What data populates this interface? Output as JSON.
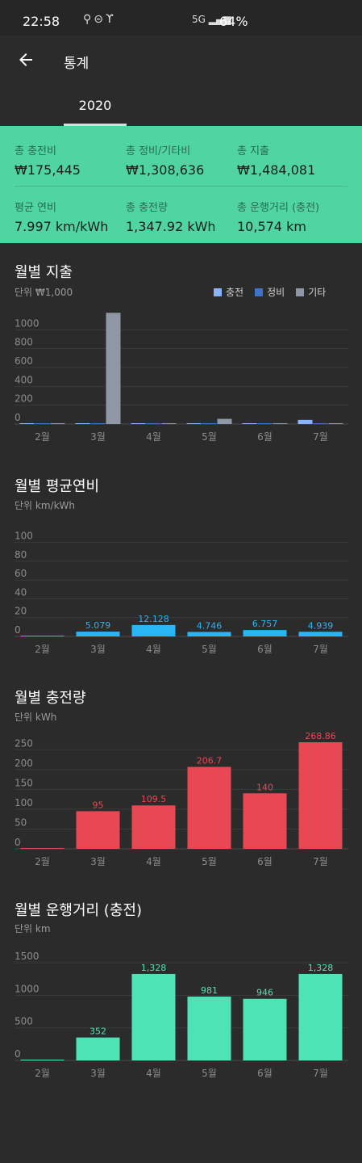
{
  "status_bar": {
    "time": "22:58",
    "network": "5G",
    "battery": "64%",
    "icons": [
      "tesla-icon",
      "minus-circle-icon",
      "tesla-icon"
    ]
  },
  "app_bar": {
    "title": "통계",
    "back_icon": "arrow-left-icon"
  },
  "tabs": [
    {
      "label": "2020",
      "selected": true
    }
  ],
  "summary": {
    "items": [
      {
        "label": "총 충전비",
        "value": "₩175,445"
      },
      {
        "label": "총 정비/기타비",
        "value": "₩1,308,636"
      },
      {
        "label": "총 지출",
        "value": "₩1,484,081"
      },
      {
        "label": "평균 연비",
        "value": "7.997 km/kWh"
      },
      {
        "label": "총 충전량",
        "value": "1,347.92 kWh"
      },
      {
        "label": "총 운행거리 (충전)",
        "value": "10,574 km"
      }
    ]
  },
  "colors": {
    "summary_bg": "#50d4a2",
    "charge": "#8ab4f8",
    "maintenance": "#3d74c8",
    "other": "#8f98a4",
    "efficiency": "#29b6f6",
    "energy": "#e84853",
    "distance": "#4de3b5"
  },
  "chart_data": [
    {
      "type": "bar",
      "title": "월별 지출",
      "subtitle": "단위 ₩1,000",
      "categories": [
        "2월",
        "3월",
        "4월",
        "5월",
        "6월",
        "7월"
      ],
      "series": [
        {
          "name": "충전",
          "values": [
            2,
            1,
            2,
            7,
            4,
            44
          ]
        },
        {
          "name": "정비",
          "values": [
            0,
            0,
            0,
            0,
            0,
            0
          ]
        },
        {
          "name": "기타",
          "values": [
            0,
            1180,
            0,
            55,
            0,
            0
          ]
        }
      ],
      "yticks": [
        0,
        200,
        400,
        600,
        800,
        1000
      ],
      "ylim": [
        0,
        1200
      ],
      "legend": "top-right"
    },
    {
      "type": "bar",
      "title": "월별 평균연비",
      "subtitle": "단위 km/kWh",
      "categories": [
        "2월",
        "3월",
        "4월",
        "5월",
        "6월",
        "7월"
      ],
      "values": [
        0,
        5.079,
        12.128,
        4.746,
        6.757,
        4.939
      ],
      "labels": [
        "",
        "5.079",
        "12.128",
        "4.746",
        "6.757",
        "4.939"
      ],
      "yticks": [
        0,
        20,
        40,
        60,
        80,
        100
      ],
      "ylim": [
        0,
        110
      ]
    },
    {
      "type": "bar",
      "title": "월별 충전량",
      "subtitle": "단위 kWh",
      "categories": [
        "2월",
        "3월",
        "4월",
        "5월",
        "6월",
        "7월"
      ],
      "values": [
        0.5,
        95,
        109.5,
        206.7,
        140,
        268.86
      ],
      "labels": [
        "",
        "95",
        "109.5",
        "206.7",
        "140",
        "268.86"
      ],
      "yticks": [
        0,
        50,
        100,
        150,
        200,
        250
      ],
      "ylim": [
        0,
        275
      ]
    },
    {
      "type": "bar",
      "title": "월별 운행거리 (충전)",
      "subtitle": "단위 km",
      "categories": [
        "2월",
        "3월",
        "4월",
        "5월",
        "6월",
        "7월"
      ],
      "values": [
        0,
        352,
        1328,
        981,
        946,
        1328
      ],
      "labels": [
        "",
        "352",
        "1,328",
        "981",
        "946",
        "1,328"
      ],
      "yticks": [
        0,
        500,
        1000,
        1500
      ],
      "ylim": [
        0,
        1650
      ]
    }
  ]
}
